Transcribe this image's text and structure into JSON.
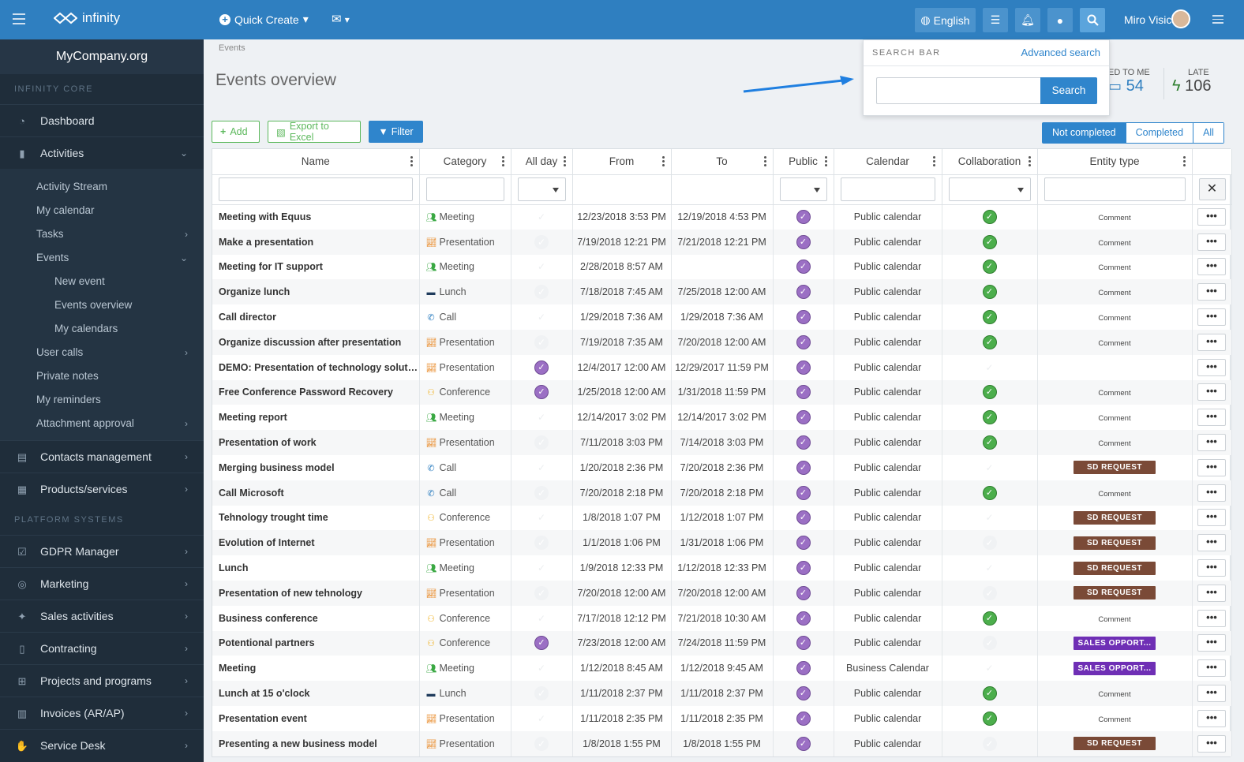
{
  "header": {
    "logo": "infinity",
    "quick_create": "Quick Create",
    "language": "English",
    "user_name": "Miro Visic"
  },
  "sidebar": {
    "org": "MyCompany.org",
    "section_core": "INFINITY CORE",
    "section_platform": "PLATFORM SYSTEMS",
    "dashboard": "Dashboard",
    "activities": "Activities",
    "activity_stream": "Activity Stream",
    "my_calendar": "My calendar",
    "tasks": "Tasks",
    "events": "Events",
    "new_event": "New event",
    "events_overview": "Events overview",
    "my_calendars": "My calendars",
    "user_calls": "User calls",
    "private_notes": "Private notes",
    "my_reminders": "My reminders",
    "attachment_approval": "Attachment approval",
    "contacts": "Contacts management",
    "products": "Products/services",
    "gdpr": "GDPR Manager",
    "marketing": "Marketing",
    "sales": "Sales activities",
    "contracting": "Contracting",
    "projects": "Projects and programs",
    "invoices": "Invoices (AR/AP)",
    "service_desk": "Service Desk"
  },
  "page": {
    "breadcrumb": "Events",
    "title": "Events overview",
    "assigned_label": "ED TO ME",
    "assigned_count": "54",
    "late_label": "LATE",
    "late_count": "106",
    "add": "Add",
    "export": "Export to Excel",
    "filter": "Filter",
    "seg_not_completed": "Not completed",
    "seg_completed": "Completed",
    "seg_all": "All"
  },
  "search": {
    "label": "SEARCH BAR",
    "advanced": "Advanced search",
    "button": "Search",
    "value": ""
  },
  "table": {
    "columns": [
      "Name",
      "Category",
      "All day",
      "From",
      "To",
      "Public",
      "Calendar",
      "Collaboration",
      "Entity type"
    ],
    "rows": [
      {
        "name": "Meeting with Equus",
        "cat": "Meeting",
        "allday": false,
        "from": "12/23/2018 3:53 PM",
        "to": "12/19/2018 4:53 PM",
        "cal": "Public calendar",
        "collab": true,
        "etype": "Comment"
      },
      {
        "name": "Make a presentation",
        "cat": "Presentation",
        "allday": false,
        "from": "7/19/2018 12:21 PM",
        "to": "7/21/2018 12:21 PM",
        "cal": "Public calendar",
        "collab": true,
        "etype": "Comment"
      },
      {
        "name": "Meeting for IT support",
        "cat": "Meeting",
        "allday": false,
        "from": "2/28/2018 8:57 AM",
        "to": "",
        "cal": "Public calendar",
        "collab": true,
        "etype": "Comment"
      },
      {
        "name": "Organize lunch",
        "cat": "Lunch",
        "allday": false,
        "from": "7/18/2018 7:45 AM",
        "to": "7/25/2018 12:00 AM",
        "cal": "Public calendar",
        "collab": true,
        "etype": "Comment"
      },
      {
        "name": "Call director",
        "cat": "Call",
        "allday": false,
        "from": "1/29/2018 7:36 AM",
        "to": "1/29/2018 7:36 AM",
        "cal": "Public calendar",
        "collab": true,
        "etype": "Comment"
      },
      {
        "name": "Organize discussion after presentation",
        "cat": "Presentation",
        "allday": false,
        "from": "7/19/2018 7:35 AM",
        "to": "7/20/2018 12:00 AM",
        "cal": "Public calendar",
        "collab": true,
        "etype": "Comment"
      },
      {
        "name": "DEMO: Presentation of technology solutions",
        "cat": "Presentation",
        "allday": true,
        "from": "12/4/2017 12:00 AM",
        "to": "12/29/2017 11:59 PM",
        "cal": "Public calendar",
        "collab": false,
        "etype": ""
      },
      {
        "name": "Free Conference Password Recovery",
        "cat": "Conference",
        "allday": true,
        "from": "1/25/2018 12:00 AM",
        "to": "1/31/2018 11:59 PM",
        "cal": "Public calendar",
        "collab": true,
        "etype": "Comment"
      },
      {
        "name": "Meeting report",
        "cat": "Meeting",
        "allday": false,
        "from": "12/14/2017 3:02 PM",
        "to": "12/14/2017 3:02 PM",
        "cal": "Public calendar",
        "collab": true,
        "etype": "Comment"
      },
      {
        "name": "Presentation of work",
        "cat": "Presentation",
        "allday": false,
        "from": "7/11/2018 3:03 PM",
        "to": "7/14/2018 3:03 PM",
        "cal": "Public calendar",
        "collab": true,
        "etype": "Comment"
      },
      {
        "name": "Merging business model",
        "cat": "Call",
        "allday": false,
        "from": "1/20/2018 2:36 PM",
        "to": "7/20/2018 2:36 PM",
        "cal": "Public calendar",
        "collab": false,
        "etype": "SD REQUEST"
      },
      {
        "name": "Call Microsoft",
        "cat": "Call",
        "allday": false,
        "from": "7/20/2018 2:18 PM",
        "to": "7/20/2018 2:18 PM",
        "cal": "Public calendar",
        "collab": true,
        "etype": "Comment"
      },
      {
        "name": "Tehnology trought time",
        "cat": "Conference",
        "allday": false,
        "from": "1/8/2018 1:07 PM",
        "to": "1/12/2018 1:07 PM",
        "cal": "Public calendar",
        "collab": false,
        "etype": "SD REQUEST"
      },
      {
        "name": "Evolution of Internet",
        "cat": "Presentation",
        "allday": false,
        "from": "1/1/2018 1:06 PM",
        "to": "1/31/2018 1:06 PM",
        "cal": "Public calendar",
        "collab": false,
        "etype": "SD REQUEST"
      },
      {
        "name": "Lunch",
        "cat": "Meeting",
        "allday": false,
        "from": "1/9/2018 12:33 PM",
        "to": "1/12/2018 12:33 PM",
        "cal": "Public calendar",
        "collab": false,
        "etype": "SD REQUEST"
      },
      {
        "name": "Presentation of new tehnology",
        "cat": "Presentation",
        "allday": false,
        "from": "7/20/2018 12:00 AM",
        "to": "7/20/2018 12:00 AM",
        "cal": "Public calendar",
        "collab": false,
        "etype": "SD REQUEST"
      },
      {
        "name": "Business conference",
        "cat": "Conference",
        "allday": false,
        "from": "7/17/2018 12:12 PM",
        "to": "7/21/2018 10:30 AM",
        "cal": "Public calendar",
        "collab": true,
        "etype": "Comment"
      },
      {
        "name": "Potentional partners",
        "cat": "Conference",
        "allday": true,
        "from": "7/23/2018 12:00 AM",
        "to": "7/24/2018 11:59 PM",
        "cal": "Public calendar",
        "collab": false,
        "etype": "SALES OPPORT..."
      },
      {
        "name": "Meeting",
        "cat": "Meeting",
        "allday": false,
        "from": "1/12/2018 8:45 AM",
        "to": "1/12/2018 9:45 AM",
        "cal": "Business Calendar",
        "collab": false,
        "etype": "SALES OPPORT..."
      },
      {
        "name": "Lunch at 15 o'clock",
        "cat": "Lunch",
        "allday": false,
        "from": "1/11/2018 2:37 PM",
        "to": "1/11/2018 2:37 PM",
        "cal": "Public calendar",
        "collab": true,
        "etype": "Comment"
      },
      {
        "name": "Presentation event",
        "cat": "Presentation",
        "allday": false,
        "from": "1/11/2018 2:35 PM",
        "to": "1/11/2018 2:35 PM",
        "cal": "Public calendar",
        "collab": true,
        "etype": "Comment"
      },
      {
        "name": "Presenting a new business model",
        "cat": "Presentation",
        "allday": false,
        "from": "1/8/2018 1:55 PM",
        "to": "1/8/2018 1:55 PM",
        "cal": "Public calendar",
        "collab": false,
        "etype": "SD REQUEST"
      }
    ]
  },
  "colors": {
    "primary": "#2f7fc0",
    "sd_request": "#7a4a37",
    "sales_opport": "#6f2fb5",
    "public_check": "#9b6fc4",
    "collab_check": "#4cae4c"
  },
  "category_icons": {
    "Meeting": "people-icon",
    "Presentation": "chart-icon",
    "Lunch": "laptop-icon",
    "Call": "phone-icon",
    "Conference": "conference-icon"
  }
}
